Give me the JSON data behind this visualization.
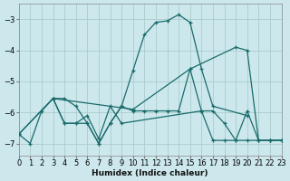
{
  "xlabel": "Humidex (Indice chaleur)",
  "background_color": "#cce8ed",
  "grid_color": "#aacccc",
  "line_color": "#1a6b6b",
  "xlim": [
    0,
    23
  ],
  "ylim": [
    -7.4,
    -2.5
  ],
  "yticks": [
    -7,
    -6,
    -5,
    -4,
    -3
  ],
  "xticks": [
    0,
    1,
    2,
    3,
    4,
    5,
    6,
    7,
    8,
    9,
    10,
    11,
    12,
    13,
    14,
    15,
    16,
    17,
    18,
    19,
    20,
    21,
    22,
    23
  ],
  "lines": [
    {
      "x": [
        0,
        1,
        2,
        3,
        4,
        5,
        6,
        7,
        8,
        9,
        10,
        11,
        12,
        13,
        14,
        15,
        16,
        17,
        20
      ],
      "y": [
        -6.7,
        -7.0,
        -5.95,
        -5.55,
        -5.55,
        -5.8,
        -6.35,
        -7.0,
        -6.35,
        -5.8,
        -4.65,
        -3.5,
        -3.1,
        -3.05,
        -2.85,
        -3.1,
        -4.6,
        -5.8,
        -6.1
      ]
    },
    {
      "x": [
        0,
        3,
        10,
        15,
        19,
        20,
        21,
        22,
        23
      ],
      "y": [
        -6.7,
        -5.55,
        -5.9,
        -4.6,
        -3.9,
        -4.0,
        -6.9,
        -6.9,
        -6.9
      ]
    },
    {
      "x": [
        0,
        3,
        4,
        5,
        6,
        7,
        8,
        9,
        10,
        11,
        12,
        13,
        14,
        15,
        16,
        17,
        18,
        19,
        20,
        21,
        22,
        23
      ],
      "y": [
        -6.7,
        -5.55,
        -6.35,
        -6.35,
        -6.35,
        -7.0,
        -6.35,
        -5.8,
        -5.95,
        -5.95,
        -5.95,
        -5.95,
        -5.95,
        -4.6,
        -5.95,
        -5.95,
        -6.35,
        -6.9,
        -6.9,
        -6.9,
        -6.9,
        -6.9
      ]
    },
    {
      "x": [
        3,
        4,
        5,
        6,
        7,
        8,
        9,
        16,
        17,
        18,
        19,
        20,
        21,
        22,
        23
      ],
      "y": [
        -5.55,
        -6.35,
        -6.35,
        -6.1,
        -6.85,
        -5.8,
        -6.35,
        -5.95,
        -6.9,
        -6.9,
        -6.9,
        -5.95,
        -6.9,
        -6.9,
        -6.9
      ]
    }
  ]
}
